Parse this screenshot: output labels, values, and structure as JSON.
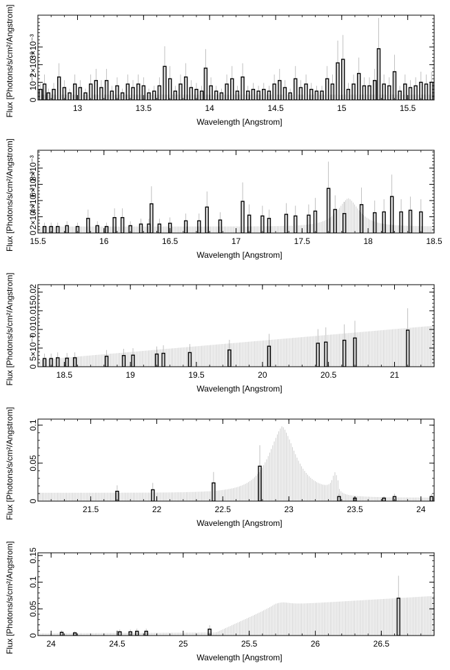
{
  "figure": {
    "ylabel": "Flux [Photons/s/cm²/Angstrom]",
    "xlabel": "Wavelength [Angstrom]",
    "colors": {
      "data": "#000000",
      "model": "#c8c8c8",
      "axis": "#000000"
    }
  },
  "chart_data": [
    {
      "type": "bar",
      "xlabel": "Wavelength [Angstrom]",
      "ylabel": "Flux [Photons/s/cm²/Angstrom]",
      "xlim": [
        12.7,
        15.7
      ],
      "ylim": [
        0,
        0.0048
      ],
      "xticks": [
        13,
        13.5,
        14,
        14.5,
        15,
        15.5
      ],
      "xtick_labels": [
        "13",
        "13.5",
        "14",
        "14.5",
        "15",
        "15.5"
      ],
      "yticks": [
        0,
        0.001,
        0.002,
        0.003
      ],
      "ytick_labels": [
        "0",
        "10⁻³",
        "2×10⁻³",
        "3×10⁻³"
      ],
      "model_baseline": 0.0003,
      "data_bins": [
        [
          12.72,
          0.0006
        ],
        [
          12.75,
          0.0009
        ],
        [
          12.78,
          0.0004
        ],
        [
          12.82,
          0.0006
        ],
        [
          12.86,
          0.0013
        ],
        [
          12.9,
          0.0007
        ],
        [
          12.94,
          0.0004
        ],
        [
          12.98,
          0.0009
        ],
        [
          13.02,
          0.0007
        ],
        [
          13.06,
          0.0004
        ],
        [
          13.1,
          0.0009
        ],
        [
          13.14,
          0.0011
        ],
        [
          13.18,
          0.0007
        ],
        [
          13.22,
          0.0011
        ],
        [
          13.26,
          0.0005
        ],
        [
          13.3,
          0.0008
        ],
        [
          13.34,
          0.0004
        ],
        [
          13.38,
          0.0009
        ],
        [
          13.42,
          0.0007
        ],
        [
          13.46,
          0.0009
        ],
        [
          13.5,
          0.0008
        ],
        [
          13.54,
          0.0004
        ],
        [
          13.58,
          0.0005
        ],
        [
          13.62,
          0.0008
        ],
        [
          13.66,
          0.0019
        ],
        [
          13.7,
          0.0012
        ],
        [
          13.74,
          0.0005
        ],
        [
          13.78,
          0.0009
        ],
        [
          13.82,
          0.0013
        ],
        [
          13.86,
          0.0007
        ],
        [
          13.9,
          0.0006
        ],
        [
          13.94,
          0.0005
        ],
        [
          13.97,
          0.0018
        ],
        [
          14.01,
          0.0008
        ],
        [
          14.05,
          0.0005
        ],
        [
          14.09,
          0.0004
        ],
        [
          14.13,
          0.0009
        ],
        [
          14.17,
          0.0012
        ],
        [
          14.21,
          0.0005
        ],
        [
          14.25,
          0.0013
        ],
        [
          14.29,
          0.0005
        ],
        [
          14.33,
          0.0006
        ],
        [
          14.37,
          0.0005
        ],
        [
          14.41,
          0.0006
        ],
        [
          14.45,
          0.0005
        ],
        [
          14.49,
          0.0009
        ],
        [
          14.53,
          0.0011
        ],
        [
          14.57,
          0.0007
        ],
        [
          14.61,
          0.0004
        ],
        [
          14.65,
          0.0012
        ],
        [
          14.69,
          0.0007
        ],
        [
          14.73,
          0.0009
        ],
        [
          14.77,
          0.0006
        ],
        [
          14.81,
          0.0005
        ],
        [
          14.85,
          0.0005
        ],
        [
          14.89,
          0.0012
        ],
        [
          14.93,
          0.0009
        ],
        [
          14.97,
          0.0021
        ],
        [
          15.01,
          0.0023
        ],
        [
          15.05,
          0.0006
        ],
        [
          15.09,
          0.0009
        ],
        [
          15.13,
          0.0015
        ],
        [
          15.17,
          0.0008
        ],
        [
          15.21,
          0.0008
        ],
        [
          15.25,
          0.0011
        ],
        [
          15.28,
          0.0029
        ],
        [
          15.32,
          0.0009
        ],
        [
          15.36,
          0.0008
        ],
        [
          15.4,
          0.0016
        ],
        [
          15.44,
          0.0005
        ],
        [
          15.48,
          0.0009
        ],
        [
          15.52,
          0.0007
        ],
        [
          15.56,
          0.0008
        ],
        [
          15.6,
          0.001
        ],
        [
          15.64,
          0.0009
        ],
        [
          15.68,
          0.001
        ]
      ]
    },
    {
      "type": "bar",
      "xlabel": "Wavelength [Angstrom]",
      "ylabel": "Flux [Photons/s/cm²/Angstrom]",
      "xlim": [
        15.5,
        18.5
      ],
      "ylim": [
        0,
        0.0102
      ],
      "xticks": [
        15.5,
        16,
        16.5,
        17,
        17.5,
        18,
        18.5
      ],
      "xtick_labels": [
        "15.5",
        "16",
        "16.5",
        "17",
        "17.5",
        "18",
        "18.5"
      ],
      "yticks": [
        0,
        0.002,
        0.004,
        0.006,
        0.008
      ],
      "ytick_labels": [
        "0",
        "2×10⁻³",
        "4×10⁻³",
        "6×10⁻³",
        "8×10⁻³"
      ],
      "model_baseline": 0.0008,
      "model_peaks": [
        {
          "center": 17.85,
          "height": 0.0035,
          "width": 0.12
        }
      ],
      "data_bins": [
        [
          15.55,
          0.0008
        ],
        [
          15.6,
          0.0008
        ],
        [
          15.65,
          0.0008
        ],
        [
          15.72,
          0.0009
        ],
        [
          15.8,
          0.0008
        ],
        [
          15.88,
          0.0018
        ],
        [
          15.95,
          0.0009
        ],
        [
          16.02,
          0.0008
        ],
        [
          16.08,
          0.0019
        ],
        [
          16.14,
          0.0019
        ],
        [
          16.2,
          0.0009
        ],
        [
          16.28,
          0.0011
        ],
        [
          16.34,
          0.0011
        ],
        [
          16.36,
          0.0036
        ],
        [
          16.42,
          0.0011
        ],
        [
          16.5,
          0.0012
        ],
        [
          16.62,
          0.0015
        ],
        [
          16.72,
          0.0015
        ],
        [
          16.78,
          0.0032
        ],
        [
          16.88,
          0.0016
        ],
        [
          17.05,
          0.0039
        ],
        [
          17.1,
          0.0022
        ],
        [
          17.2,
          0.0021
        ],
        [
          17.25,
          0.0018
        ],
        [
          17.38,
          0.0023
        ],
        [
          17.45,
          0.0021
        ],
        [
          17.55,
          0.0022
        ],
        [
          17.6,
          0.0027
        ],
        [
          17.7,
          0.0055
        ],
        [
          17.75,
          0.0029
        ],
        [
          17.82,
          0.0024
        ],
        [
          17.95,
          0.0035
        ],
        [
          18.05,
          0.0025
        ],
        [
          18.12,
          0.0026
        ],
        [
          18.18,
          0.0045
        ],
        [
          18.25,
          0.0026
        ],
        [
          18.32,
          0.0028
        ],
        [
          18.4,
          0.0026
        ]
      ]
    },
    {
      "type": "bar",
      "xlabel": "Wavelength [Angstrom]",
      "ylabel": "Flux [Photons/s/cm²/Angstrom]",
      "xlim": [
        18.3,
        21.3
      ],
      "ylim": [
        0,
        0.022
      ],
      "xticks": [
        18.5,
        19,
        19.5,
        20,
        20.5,
        21
      ],
      "xtick_labels": [
        "18.5",
        "19",
        "19.5",
        "20",
        "20.5",
        "21"
      ],
      "yticks": [
        0,
        0.005,
        0.01,
        0.015,
        0.02
      ],
      "ytick_labels": [
        "0",
        "5×10⁻³",
        "0.01",
        "0.015",
        "0.02"
      ],
      "model_baseline_start": 0.0018,
      "model_baseline_end": 0.011,
      "data_bins": [
        [
          18.35,
          0.0022
        ],
        [
          18.4,
          0.0022
        ],
        [
          18.45,
          0.0024
        ],
        [
          18.52,
          0.0023
        ],
        [
          18.58,
          0.0024
        ],
        [
          18.82,
          0.0028
        ],
        [
          18.95,
          0.003
        ],
        [
          19.02,
          0.0031
        ],
        [
          19.2,
          0.0034
        ],
        [
          19.25,
          0.0036
        ],
        [
          19.45,
          0.0038
        ],
        [
          19.75,
          0.0045
        ],
        [
          20.05,
          0.0055
        ],
        [
          20.42,
          0.0063
        ],
        [
          20.48,
          0.0066
        ],
        [
          20.62,
          0.0071
        ],
        [
          20.7,
          0.0077
        ],
        [
          21.1,
          0.0098
        ]
      ]
    },
    {
      "type": "bar",
      "xlabel": "Wavelength [Angstrom]",
      "ylabel": "Flux [Photons/s/cm²/Angstrom]",
      "xlim": [
        21.1,
        24.1
      ],
      "ylim": [
        0,
        0.108
      ],
      "xticks": [
        21.5,
        22,
        22.5,
        23,
        23.5,
        24
      ],
      "xtick_labels": [
        "21.5",
        "22",
        "22.5",
        "23",
        "23.5",
        "24"
      ],
      "yticks": [
        0,
        0.05,
        0.1
      ],
      "ytick_labels": [
        "0",
        "0.05",
        "0.1"
      ],
      "model_baseline": 0.011,
      "model_peaks": [
        {
          "center": 22.95,
          "height": 0.088,
          "width": 0.16
        },
        {
          "center": 23.35,
          "height": 0.022,
          "width": 0.025
        }
      ],
      "model_cutoff_after": 23.38,
      "model_baseline_after_cutoff": 0.0045,
      "data_bins": [
        [
          21.7,
          0.013
        ],
        [
          21.97,
          0.015
        ],
        [
          22.43,
          0.024
        ],
        [
          22.78,
          0.046
        ],
        [
          23.38,
          0.006
        ],
        [
          23.5,
          0.004
        ],
        [
          23.72,
          0.004
        ],
        [
          23.8,
          0.006
        ],
        [
          24.08,
          0.006
        ]
      ]
    },
    {
      "type": "bar",
      "xlabel": "Wavelength [Angstrom]",
      "ylabel": "Flux [Photons/s/cm²/Angstrom]",
      "xlim": [
        23.9,
        26.9
      ],
      "ylim": [
        0,
        0.155
      ],
      "xticks": [
        24,
        24.5,
        25,
        25.5,
        26,
        26.5
      ],
      "xtick_labels": [
        "24",
        "24.5",
        "25",
        "25.5",
        "26",
        "26.5"
      ],
      "yticks": [
        0,
        0.05,
        0.1,
        0.15
      ],
      "ytick_labels": [
        "0",
        "0.05",
        "0.1",
        "0.15"
      ],
      "model_baseline_start": 0.004,
      "model_baseline_end": 0.008,
      "model_rise": [
        25.25,
        25.7,
        0.05
      ],
      "model_peaks": [
        {
          "center": 25.75,
          "height": 0.005,
          "width": 0.08
        }
      ],
      "model_tail_slope": 0.015,
      "data_bins": [
        [
          24.08,
          0.006
        ],
        [
          24.18,
          0.005
        ],
        [
          24.52,
          0.007
        ],
        [
          24.6,
          0.007
        ],
        [
          24.65,
          0.008
        ],
        [
          24.72,
          0.008
        ],
        [
          25.2,
          0.012
        ],
        [
          26.63,
          0.07
        ]
      ]
    }
  ]
}
